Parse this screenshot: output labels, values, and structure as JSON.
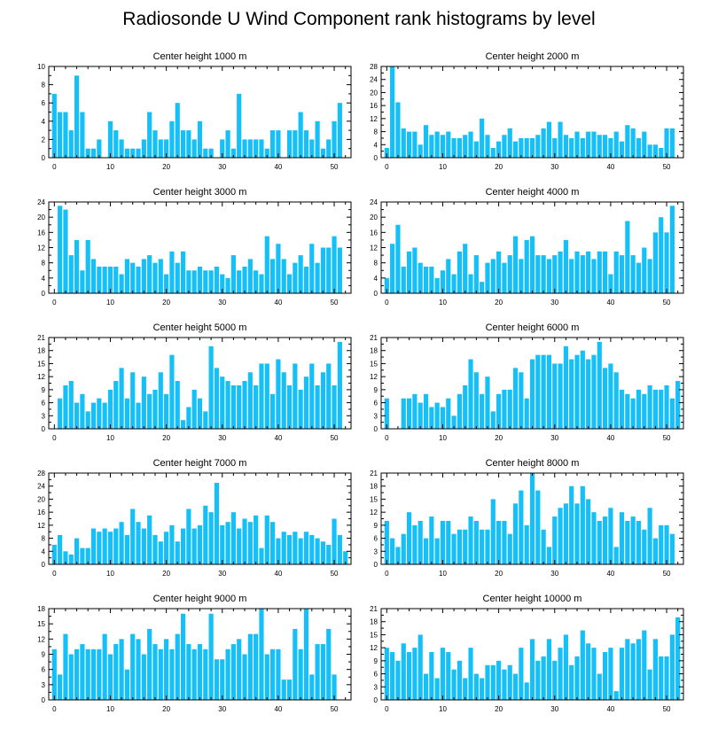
{
  "title": "Radiosonde U Wind Component rank histograms by level",
  "colors": {
    "bar": "#14c0f7",
    "axis": "#000000",
    "background": "#ffffff"
  },
  "chart_data": [
    {
      "type": "bar",
      "title": "Center height 1000 m",
      "ylim": [
        0,
        10
      ],
      "yticks": [
        0,
        2,
        4,
        6,
        8,
        10
      ],
      "xlim": [
        -1,
        53
      ],
      "xticks": [
        0,
        10,
        20,
        30,
        40,
        50
      ],
      "values": [
        7,
        5,
        5,
        3,
        9,
        5,
        1,
        1,
        2,
        0,
        4,
        3,
        2,
        1,
        1,
        1,
        2,
        5,
        3,
        2,
        2,
        4,
        6,
        3,
        3,
        2,
        4,
        1,
        1,
        0,
        2,
        3,
        1,
        7,
        2,
        2,
        2,
        2,
        1,
        3,
        3,
        0,
        3,
        3,
        5,
        3,
        2,
        4,
        1,
        2,
        4,
        6
      ]
    },
    {
      "type": "bar",
      "title": "Center height 2000 m",
      "ylim": [
        0,
        28
      ],
      "yticks": [
        0,
        4,
        8,
        12,
        16,
        20,
        24,
        28
      ],
      "xlim": [
        -1,
        53
      ],
      "xticks": [
        0,
        10,
        20,
        30,
        40,
        50
      ],
      "values": [
        3,
        28,
        17,
        9,
        8,
        8,
        4,
        10,
        7,
        8,
        7,
        8,
        6,
        6,
        7,
        8,
        5,
        12,
        7,
        3,
        5,
        7,
        9,
        5,
        6,
        6,
        6,
        7,
        9,
        11,
        6,
        11,
        7,
        6,
        8,
        6,
        8,
        8,
        7,
        7,
        6,
        8,
        5,
        10,
        9,
        6,
        8,
        4,
        4,
        3,
        9,
        9
      ]
    },
    {
      "type": "bar",
      "title": "Center height 3000 m",
      "ylim": [
        0,
        24
      ],
      "yticks": [
        0,
        4,
        8,
        12,
        16,
        20,
        24
      ],
      "xlim": [
        -1,
        53
      ],
      "xticks": [
        0,
        10,
        20,
        30,
        40,
        50
      ],
      "values": [
        0,
        23,
        22,
        10,
        14,
        6,
        14,
        9,
        7,
        7,
        7,
        7,
        5,
        9,
        8,
        7,
        9,
        10,
        8,
        9,
        5,
        11,
        8,
        11,
        6,
        6,
        7,
        6,
        6,
        7,
        5,
        4,
        10,
        6,
        7,
        9,
        6,
        5,
        15,
        9,
        13,
        9,
        5,
        8,
        10,
        7,
        13,
        8,
        12,
        12,
        15,
        12
      ]
    },
    {
      "type": "bar",
      "title": "Center height 4000 m",
      "ylim": [
        0,
        24
      ],
      "yticks": [
        0,
        4,
        8,
        12,
        16,
        20,
        24
      ],
      "xlim": [
        -1,
        53
      ],
      "xticks": [
        0,
        10,
        20,
        30,
        40,
        50
      ],
      "values": [
        4,
        13,
        18,
        7,
        11,
        12,
        8,
        7,
        7,
        4,
        6,
        9,
        5,
        11,
        13,
        5,
        10,
        3,
        8,
        9,
        11,
        8,
        10,
        15,
        9,
        14,
        15,
        10,
        10,
        9,
        10,
        11,
        14,
        9,
        11,
        10,
        11,
        9,
        11,
        11,
        5,
        11,
        10,
        19,
        10,
        8,
        12,
        9,
        16,
        20,
        16,
        23
      ]
    },
    {
      "type": "bar",
      "title": "Center height 5000 m",
      "ylim": [
        0,
        21
      ],
      "yticks": [
        0,
        3,
        6,
        9,
        12,
        15,
        18,
        21
      ],
      "xlim": [
        -1,
        53
      ],
      "xticks": [
        0,
        10,
        20,
        30,
        40,
        50
      ],
      "values": [
        0,
        7,
        10,
        11,
        6,
        8,
        4,
        6,
        7,
        6,
        9,
        11,
        14,
        7,
        13,
        6,
        12,
        8,
        9,
        13,
        8,
        17,
        11,
        2,
        5,
        9,
        7,
        4,
        19,
        14,
        12,
        11,
        10,
        10,
        11,
        13,
        10,
        15,
        15,
        8,
        16,
        13,
        10,
        15,
        9,
        12,
        15,
        10,
        13,
        15,
        10,
        20
      ]
    },
    {
      "type": "bar",
      "title": "Center height 6000 m",
      "ylim": [
        0,
        21
      ],
      "yticks": [
        0,
        3,
        6,
        9,
        12,
        15,
        18,
        21
      ],
      "xlim": [
        -1,
        53
      ],
      "xticks": [
        0,
        10,
        20,
        30,
        40,
        50
      ],
      "values": [
        7,
        0,
        0,
        7,
        7,
        8,
        6,
        8,
        5,
        6,
        5,
        7,
        3,
        8,
        10,
        16,
        13,
        8,
        12,
        4,
        8,
        9,
        9,
        14,
        13,
        7,
        16,
        17,
        17,
        17,
        15,
        15,
        19,
        16,
        17,
        18,
        16,
        17,
        20,
        14,
        15,
        13,
        9,
        8,
        7,
        9,
        8,
        10,
        9,
        9,
        10,
        7,
        11
      ]
    },
    {
      "type": "bar",
      "title": "Center height 7000 m",
      "ylim": [
        0,
        28
      ],
      "yticks": [
        0,
        4,
        8,
        12,
        16,
        20,
        24,
        28
      ],
      "xlim": [
        -1,
        53
      ],
      "xticks": [
        0,
        10,
        20,
        30,
        40,
        50
      ],
      "values": [
        6,
        9,
        4,
        3,
        8,
        5,
        5,
        11,
        10,
        11,
        10,
        11,
        13,
        9,
        17,
        13,
        11,
        15,
        9,
        7,
        10,
        12,
        7,
        11,
        17,
        11,
        12,
        18,
        16,
        25,
        12,
        13,
        16,
        11,
        14,
        13,
        15,
        5,
        15,
        13,
        8,
        10,
        9,
        10,
        8,
        10,
        9,
        8,
        7,
        6,
        14,
        9,
        4
      ]
    },
    {
      "type": "bar",
      "title": "Center height 8000 m",
      "ylim": [
        0,
        21
      ],
      "yticks": [
        0,
        3,
        6,
        9,
        12,
        15,
        18,
        21
      ],
      "xlim": [
        -1,
        53
      ],
      "xticks": [
        0,
        10,
        20,
        30,
        40,
        50
      ],
      "values": [
        10,
        6,
        4,
        7,
        12,
        9,
        10,
        6,
        11,
        6,
        10,
        10,
        7,
        8,
        8,
        11,
        10,
        8,
        8,
        15,
        10,
        10,
        7,
        14,
        17,
        9,
        21,
        17,
        8,
        4,
        11,
        13,
        14,
        18,
        14,
        18,
        15,
        12,
        10,
        11,
        13,
        4,
        12,
        10,
        11,
        10,
        8,
        13,
        6,
        9,
        9,
        7
      ]
    },
    {
      "type": "bar",
      "title": "Center height 9000 m",
      "ylim": [
        0,
        18
      ],
      "yticks": [
        0,
        3,
        6,
        9,
        12,
        15,
        18
      ],
      "xlim": [
        -1,
        53
      ],
      "xticks": [
        0,
        10,
        20,
        30,
        40,
        50
      ],
      "values": [
        10,
        5,
        13,
        9,
        10,
        11,
        10,
        10,
        10,
        13,
        9,
        11,
        12,
        6,
        13,
        12,
        9,
        14,
        11,
        10,
        12,
        10,
        13,
        17,
        11,
        10,
        11,
        10,
        17,
        8,
        8,
        10,
        11,
        12,
        9,
        13,
        13,
        18,
        9,
        10,
        10,
        4,
        4,
        14,
        10,
        18,
        5,
        11,
        11,
        14,
        5
      ]
    },
    {
      "type": "bar",
      "title": "Center height 10000 m",
      "ylim": [
        0,
        21
      ],
      "yticks": [
        0,
        3,
        6,
        9,
        12,
        15,
        18,
        21
      ],
      "xlim": [
        -1,
        53
      ],
      "xticks": [
        0,
        10,
        20,
        30,
        40,
        50
      ],
      "values": [
        12,
        11,
        9,
        13,
        11,
        12,
        15,
        6,
        11,
        5,
        12,
        11,
        7,
        9,
        5,
        12,
        6,
        5,
        8,
        8,
        9,
        7,
        8,
        6,
        12,
        4,
        14,
        9,
        10,
        14,
        9,
        12,
        15,
        8,
        10,
        16,
        13,
        12,
        6,
        11,
        12,
        2,
        12,
        14,
        13,
        14,
        16,
        7,
        14,
        10,
        10,
        15,
        19
      ]
    }
  ]
}
